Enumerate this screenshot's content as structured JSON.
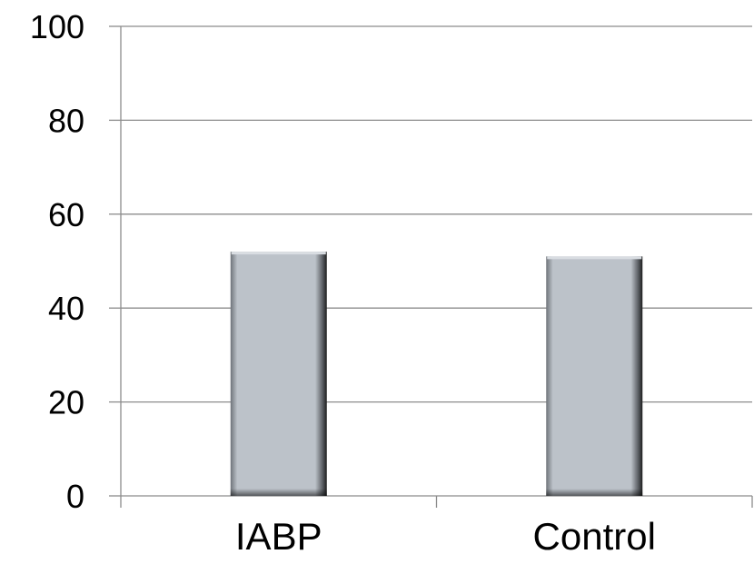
{
  "chart_data": {
    "type": "bar",
    "title": "",
    "xlabel": "",
    "ylabel": "",
    "categories": [
      "IABP",
      "Control"
    ],
    "values": [
      52,
      51
    ],
    "ylim": [
      0,
      100
    ],
    "yticks": [
      0,
      20,
      40,
      60,
      80,
      100
    ],
    "grid": true,
    "legend": "none",
    "colors": {
      "bar_fill": "#bcc2c9",
      "bar_edge_dark": "#2a2a2a",
      "gridline": "#8c8c8c",
      "text": "#000000"
    }
  }
}
